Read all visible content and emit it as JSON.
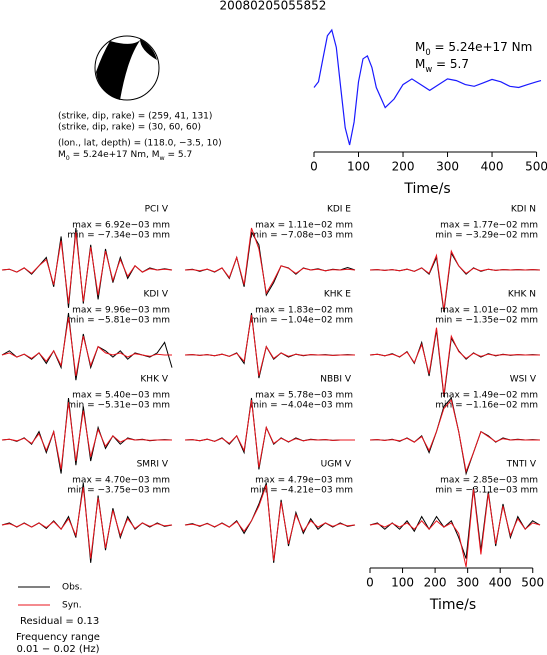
{
  "title": "20080205055852",
  "source_info": {
    "line1": "(strike, dip, rake) = (259, 41, 131)",
    "line2": "(strike, dip, rake) = (30, 60, 60)",
    "line3": "(lon., lat, depth) = (118.0, −3.5, 10)",
    "line4": [
      "M",
      "0",
      " = 5.24e+17 Nm, M",
      "w",
      " = 5.7"
    ]
  },
  "stf_labels": {
    "m0": [
      "M",
      "0",
      " = 5.24e+17 Nm"
    ],
    "mw": [
      "M",
      "w",
      " = 5.7"
    ]
  },
  "legend": [
    {
      "name": "Obs.",
      "color": "#000000"
    },
    {
      "name": "Syn.",
      "color": "#e8141c"
    }
  ],
  "residual": "Residual = 0.13",
  "frequency": [
    "Frequency range",
    "0.01 − 0.02 (Hz)"
  ],
  "chart_data": [
    {
      "type": "line",
      "color": "#1a1aff",
      "xlabel": "Time/s",
      "xlim": [
        0,
        510
      ],
      "xticks": [
        0,
        100,
        200,
        300,
        400,
        500
      ],
      "x": [
        0,
        10,
        20,
        30,
        40,
        50,
        60,
        70,
        80,
        90,
        100,
        110,
        120,
        130,
        140,
        160,
        180,
        200,
        220,
        240,
        260,
        280,
        300,
        320,
        340,
        360,
        380,
        400,
        420,
        440,
        460,
        480,
        500,
        510
      ],
      "values": [
        0,
        0.1,
        0.5,
        0.9,
        1.0,
        0.7,
        0.0,
        -0.7,
        -1.0,
        -0.6,
        0.1,
        0.5,
        0.55,
        0.35,
        0.0,
        -0.35,
        -0.2,
        0.05,
        0.15,
        0.05,
        -0.05,
        0.05,
        0.15,
        0.12,
        0.05,
        0.02,
        0.08,
        0.14,
        0.1,
        0.02,
        0.0,
        0.05,
        0.1,
        0.12
      ]
    },
    {
      "type": "trace",
      "station": "PCI V",
      "max": "max = 6.92e−03 mm",
      "min": "min = −7.34e−03 mm",
      "obs": [
        0,
        0.02,
        -0.05,
        0.05,
        -0.1,
        0.1,
        0.3,
        -0.4,
        0.8,
        -0.9,
        1,
        -0.8,
        0.6,
        -0.7,
        0.5,
        -0.3,
        0.3,
        -0.2,
        0.1,
        -0.05,
        0.05,
        0,
        0.03,
        0
      ],
      "syn": [
        0,
        0.02,
        -0.05,
        0.05,
        -0.08,
        0.1,
        0.25,
        -0.35,
        0.7,
        -0.8,
        0.9,
        -0.75,
        0.55,
        -0.6,
        0.45,
        -0.25,
        0.25,
        -0.15,
        0.1,
        -0.05,
        0.03,
        0,
        0.02,
        0
      ]
    },
    {
      "type": "trace",
      "station": "KDI E",
      "max": "max = 1.11e−02 mm",
      "min": "min = −7.08e−03 mm",
      "obs": [
        0,
        0.02,
        -0.03,
        0.02,
        -0.05,
        0.05,
        -0.2,
        0.3,
        -0.4,
        0.9,
        0.6,
        -0.6,
        -0.3,
        0.1,
        0.05,
        -0.1,
        0.05,
        0,
        0.03,
        -0.02,
        0.02,
        0,
        0.06,
        0
      ],
      "syn": [
        0,
        0.01,
        -0.02,
        0.02,
        -0.04,
        0.05,
        -0.18,
        0.3,
        -0.35,
        1,
        0.5,
        -0.55,
        -0.25,
        0.1,
        0.04,
        -0.08,
        0.04,
        0,
        0.02,
        -0.02,
        0.01,
        0,
        0.02,
        0
      ]
    },
    {
      "type": "trace",
      "station": "KDI N",
      "max": "max = 1.77e−02 mm",
      "min": "min = −3.29e−02 mm",
      "obs": [
        0,
        0.01,
        -0.01,
        0.01,
        -0.02,
        0.02,
        -0.03,
        0.05,
        -0.1,
        0.3,
        -1,
        0.4,
        0.1,
        -0.1,
        0.05,
        -0.03,
        0.02,
        -0.01,
        0.01,
        0,
        0.01,
        0,
        0.01,
        0
      ],
      "syn": [
        0,
        0.01,
        -0.01,
        0.01,
        -0.02,
        0.02,
        -0.03,
        0.05,
        -0.08,
        0.35,
        -0.95,
        0.45,
        0.1,
        -0.08,
        0.04,
        -0.02,
        0.02,
        -0.01,
        0.01,
        0,
        0.01,
        0,
        0.01,
        0
      ]
    },
    {
      "type": "trace",
      "station": "KDI V",
      "max": "max = 9.96e−03 mm",
      "min": "min = −5.81e−03 mm",
      "obs": [
        0,
        0.1,
        -0.05,
        0.02,
        -0.1,
        0.05,
        -0.2,
        0.1,
        -0.3,
        1,
        -0.6,
        0.5,
        -0.3,
        0.2,
        0.1,
        -0.05,
        0.1,
        -0.1,
        0.05,
        0,
        -0.05,
        0.05,
        0.3,
        -0.3
      ],
      "syn": [
        0,
        0.05,
        -0.05,
        0.02,
        -0.08,
        0.05,
        -0.15,
        0.1,
        -0.25,
        0.9,
        -0.5,
        0.45,
        -0.25,
        0.2,
        0.05,
        0,
        0.05,
        -0.05,
        0.03,
        0,
        -0.03,
        0.02,
        0,
        0
      ]
    },
    {
      "type": "trace",
      "station": "KHK E",
      "max": "max = 1.83e−02 mm",
      "min": "min = −1.04e−02 mm",
      "obs": [
        0,
        0.01,
        -0.01,
        0.01,
        -0.02,
        0.02,
        -0.03,
        0.05,
        -0.2,
        1,
        -0.55,
        0.2,
        -0.1,
        0.05,
        -0.05,
        0.02,
        -0.02,
        0.01,
        0,
        0.01,
        -0.01,
        0,
        0.01,
        0
      ],
      "syn": [
        0,
        0.01,
        -0.01,
        0.01,
        -0.02,
        0.02,
        -0.03,
        0.04,
        -0.15,
        0.95,
        -0.5,
        0.2,
        -0.08,
        0.05,
        -0.03,
        0.02,
        -0.01,
        0.01,
        0,
        0,
        -0.01,
        0,
        0,
        0
      ]
    },
    {
      "type": "trace",
      "station": "KHK N",
      "max": "max = 1.01e−02 mm",
      "min": "min = −1.35e−02 mm",
      "obs": [
        0,
        0.02,
        -0.02,
        0.03,
        -0.05,
        0.08,
        -0.2,
        0.3,
        -0.5,
        0.6,
        -1,
        0.4,
        0.1,
        -0.1,
        0.05,
        -0.05,
        0.03,
        -0.02,
        0.02,
        -0.01,
        0.01,
        0,
        0.01,
        0
      ],
      "syn": [
        0,
        0.02,
        -0.02,
        0.02,
        -0.04,
        0.07,
        -0.18,
        0.25,
        -0.45,
        0.65,
        -0.95,
        0.45,
        0.08,
        -0.08,
        0.04,
        -0.03,
        0.02,
        -0.01,
        0.01,
        0,
        0.01,
        0,
        0,
        0
      ]
    },
    {
      "type": "trace",
      "station": "KHK V",
      "max": "max = 5.40e−03 mm",
      "min": "min = −5.31e−03 mm",
      "obs": [
        0,
        0.02,
        -0.03,
        0.05,
        -0.1,
        0.2,
        -0.3,
        0.2,
        -0.8,
        1,
        -0.6,
        0.8,
        -0.5,
        0.3,
        -0.2,
        0.1,
        -0.1,
        0.05,
        0,
        0.02,
        -0.02,
        0,
        0.01,
        0
      ],
      "syn": [
        0,
        0.02,
        -0.02,
        0.04,
        -0.08,
        0.15,
        -0.25,
        0.2,
        -0.7,
        0.9,
        -0.5,
        0.7,
        -0.4,
        0.25,
        -0.15,
        0.1,
        -0.05,
        0.03,
        0,
        0.01,
        -0.01,
        0,
        0,
        0
      ]
    },
    {
      "type": "trace",
      "station": "NBBI V",
      "max": "max = 5.78e−03 mm",
      "min": "min = −4.04e−03 mm",
      "obs": [
        0,
        0.01,
        -0.02,
        0.02,
        -0.03,
        0.05,
        -0.1,
        0.1,
        -0.3,
        1,
        -0.7,
        0.3,
        -0.1,
        0.05,
        -0.05,
        0.05,
        -0.02,
        0.02,
        0,
        0.01,
        -0.01,
        0,
        0,
        0
      ],
      "syn": [
        0,
        0.01,
        -0.02,
        0.02,
        -0.03,
        0.04,
        -0.08,
        0.1,
        -0.25,
        0.95,
        -0.65,
        0.3,
        -0.08,
        0.04,
        -0.04,
        0.03,
        -0.02,
        0.01,
        0,
        0.01,
        -0.01,
        0,
        0,
        0
      ]
    },
    {
      "type": "trace",
      "station": "WSI V",
      "max": "max = 1.49e−02 mm",
      "min": "min = −1.16e−02 mm",
      "obs": [
        0,
        0.01,
        -0.01,
        0.02,
        -0.03,
        0.05,
        -0.05,
        0.1,
        -0.3,
        0.2,
        0.8,
        1,
        0.2,
        -0.8,
        -0.3,
        0.2,
        0.1,
        -0.05,
        0.05,
        0,
        0.02,
        0,
        0.01,
        0
      ],
      "syn": [
        0,
        0.01,
        -0.01,
        0.01,
        -0.02,
        0.04,
        -0.05,
        0.08,
        -0.25,
        0.2,
        0.75,
        0.95,
        0.2,
        -0.75,
        -0.3,
        0.2,
        0.08,
        -0.04,
        0.03,
        0,
        0.01,
        0,
        0,
        0
      ]
    },
    {
      "type": "trace",
      "station": "SMRI V",
      "max": "max = 4.70e−03 mm",
      "min": "min = −3.75e−03 mm",
      "obs": [
        0,
        0.05,
        -0.05,
        0.05,
        -0.05,
        0.05,
        -0.08,
        0.1,
        -0.1,
        0.2,
        -0.3,
        1,
        -0.9,
        0.7,
        -0.6,
        0.4,
        -0.3,
        0.2,
        -0.1,
        0.05,
        -0.05,
        0.05,
        -0.03,
        0
      ],
      "syn": [
        0,
        0.03,
        -0.04,
        0.04,
        -0.05,
        0.05,
        -0.06,
        0.08,
        -0.1,
        0.15,
        -0.25,
        0.9,
        -0.8,
        0.65,
        -0.55,
        0.35,
        -0.25,
        0.15,
        -0.08,
        0.05,
        -0.03,
        0.03,
        -0.02,
        0
      ]
    },
    {
      "type": "trace",
      "station": "UGM V",
      "max": "max = 4.79e−03 mm",
      "min": "min = −4.21e−03 mm",
      "obs": [
        0,
        0.03,
        -0.03,
        0.04,
        -0.05,
        0.05,
        -0.05,
        0.1,
        -0.2,
        0.1,
        0.5,
        1,
        -0.9,
        0.6,
        -0.5,
        0.3,
        -0.2,
        0.15,
        -0.1,
        0.05,
        -0.05,
        0.05,
        -0.03,
        0
      ],
      "syn": [
        0,
        0.02,
        -0.02,
        0.03,
        -0.04,
        0.04,
        -0.05,
        0.08,
        -0.15,
        0.1,
        0.45,
        0.95,
        -0.85,
        0.55,
        -0.45,
        0.25,
        -0.15,
        0.1,
        -0.05,
        0.05,
        -0.03,
        0.03,
        -0.02,
        0
      ]
    },
    {
      "type": "trace",
      "station": "TNTI V",
      "max": "max = 2.85e−03 mm",
      "min": "min = −3.11e−03 mm",
      "xlabel": "Time/s",
      "xlim": [
        0,
        510
      ],
      "xticks": [
        0,
        100,
        200,
        300,
        400,
        500
      ],
      "obs": [
        0,
        0.05,
        -0.1,
        0.05,
        -0.1,
        0.1,
        -0.15,
        0.2,
        -0.1,
        0.2,
        -0.05,
        0.1,
        -0.3,
        -0.8,
        0.9,
        -0.6,
        0.8,
        -0.5,
        0.5,
        -0.3,
        0.2,
        -0.1,
        0.1,
        0
      ],
      "syn": [
        0,
        0.03,
        -0.05,
        0.04,
        -0.05,
        0.05,
        -0.1,
        0.1,
        -0.1,
        0.1,
        -0.05,
        0.05,
        -0.2,
        -1,
        0.85,
        -0.7,
        0.75,
        -0.45,
        0.45,
        -0.25,
        0.15,
        -0.1,
        0.05,
        0
      ]
    }
  ]
}
